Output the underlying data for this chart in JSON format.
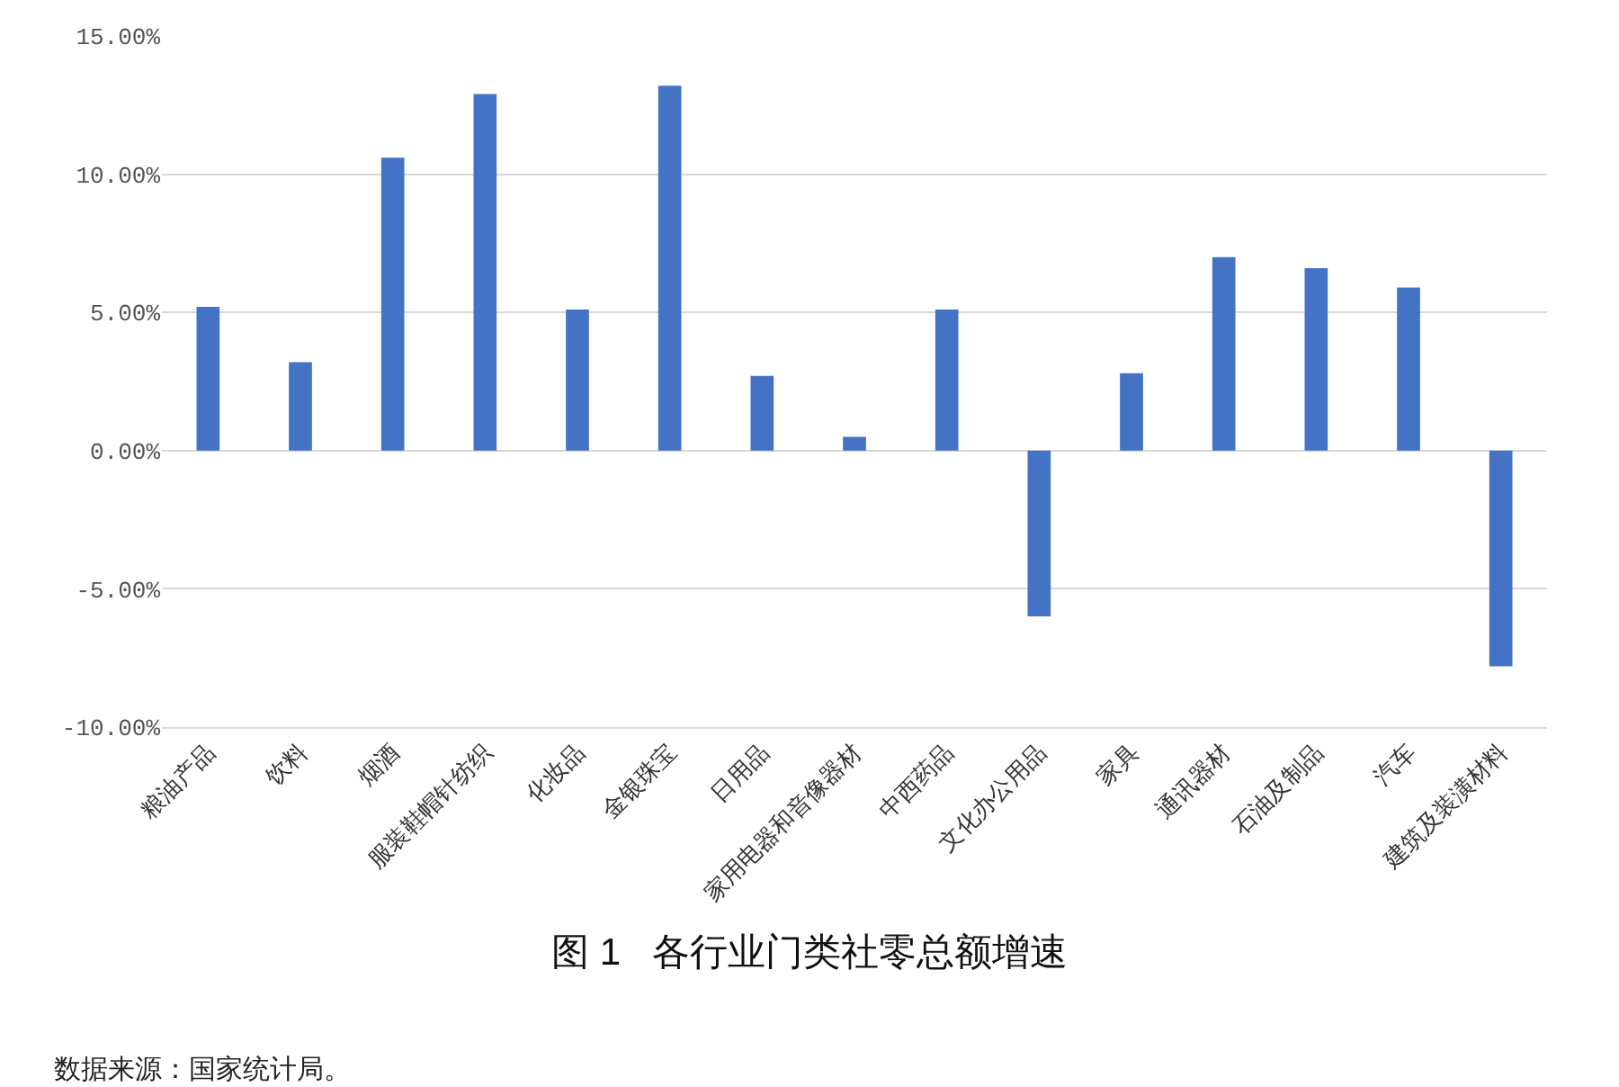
{
  "chart_data": {
    "type": "bar",
    "title": "图 1   各行业门类社零总额增速",
    "categories": [
      "粮油产品",
      "饮料",
      "烟酒",
      "服装鞋帽针纺织",
      "化妆品",
      "金银珠宝",
      "日用品",
      "家用电器和音像器材",
      "中西药品",
      "文化办公用品",
      "家具",
      "通讯器材",
      "石油及制品",
      "汽车",
      "建筑及装潢材料"
    ],
    "values": [
      5.2,
      3.2,
      10.6,
      12.9,
      5.1,
      13.2,
      2.7,
      0.5,
      5.1,
      -6.0,
      2.8,
      7.0,
      6.6,
      5.9,
      -7.8
    ],
    "color": "#4472c4",
    "ylim": [
      -10,
      15
    ],
    "yticks": [
      {
        "value": -10,
        "label": "-10.00%"
      },
      {
        "value": -5,
        "label": "-5.00%"
      },
      {
        "value": 0,
        "label": "0.00%"
      },
      {
        "value": 5,
        "label": "5.00%"
      },
      {
        "value": 10,
        "label": "10.00%"
      },
      {
        "value": 15,
        "label": "15.00%"
      }
    ],
    "grid": "y",
    "annotations": [
      "数据来源：国家统计局。"
    ]
  }
}
